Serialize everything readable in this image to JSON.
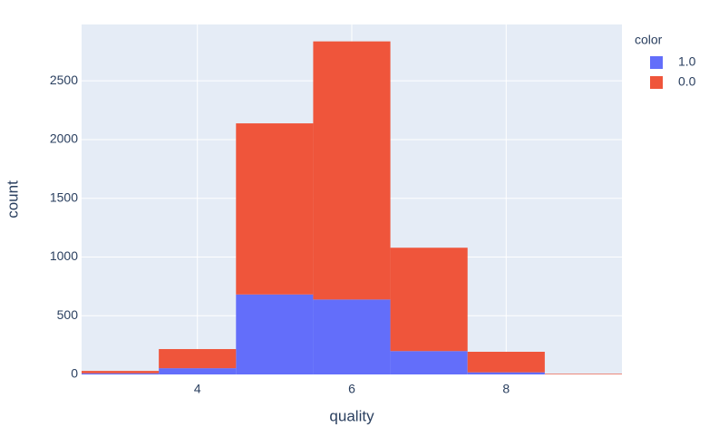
{
  "chart_data": {
    "type": "histogram",
    "barmode": "stack",
    "x_label": "quality",
    "y_label": "count",
    "legend_title": "color",
    "bins": [
      2.5,
      3.5,
      4.5,
      5.5,
      6.5,
      7.5,
      8.5,
      9.5
    ],
    "series": [
      {
        "name": "1.0",
        "color": "#636efa",
        "values": [
          10,
          53,
          681,
          638,
          199,
          18,
          0
        ]
      },
      {
        "name": "0.0",
        "color": "#ef553b",
        "values": [
          20,
          163,
          1457,
          2198,
          880,
          175,
          5
        ]
      }
    ],
    "xlim": [
      2.5,
      9.5
    ],
    "xticks": [
      4,
      6,
      8
    ],
    "ylim": [
      0,
      2980
    ],
    "yticks": [
      0,
      500,
      1000,
      1500,
      2000,
      2500
    ],
    "grid": true,
    "legend_position": "right"
  }
}
